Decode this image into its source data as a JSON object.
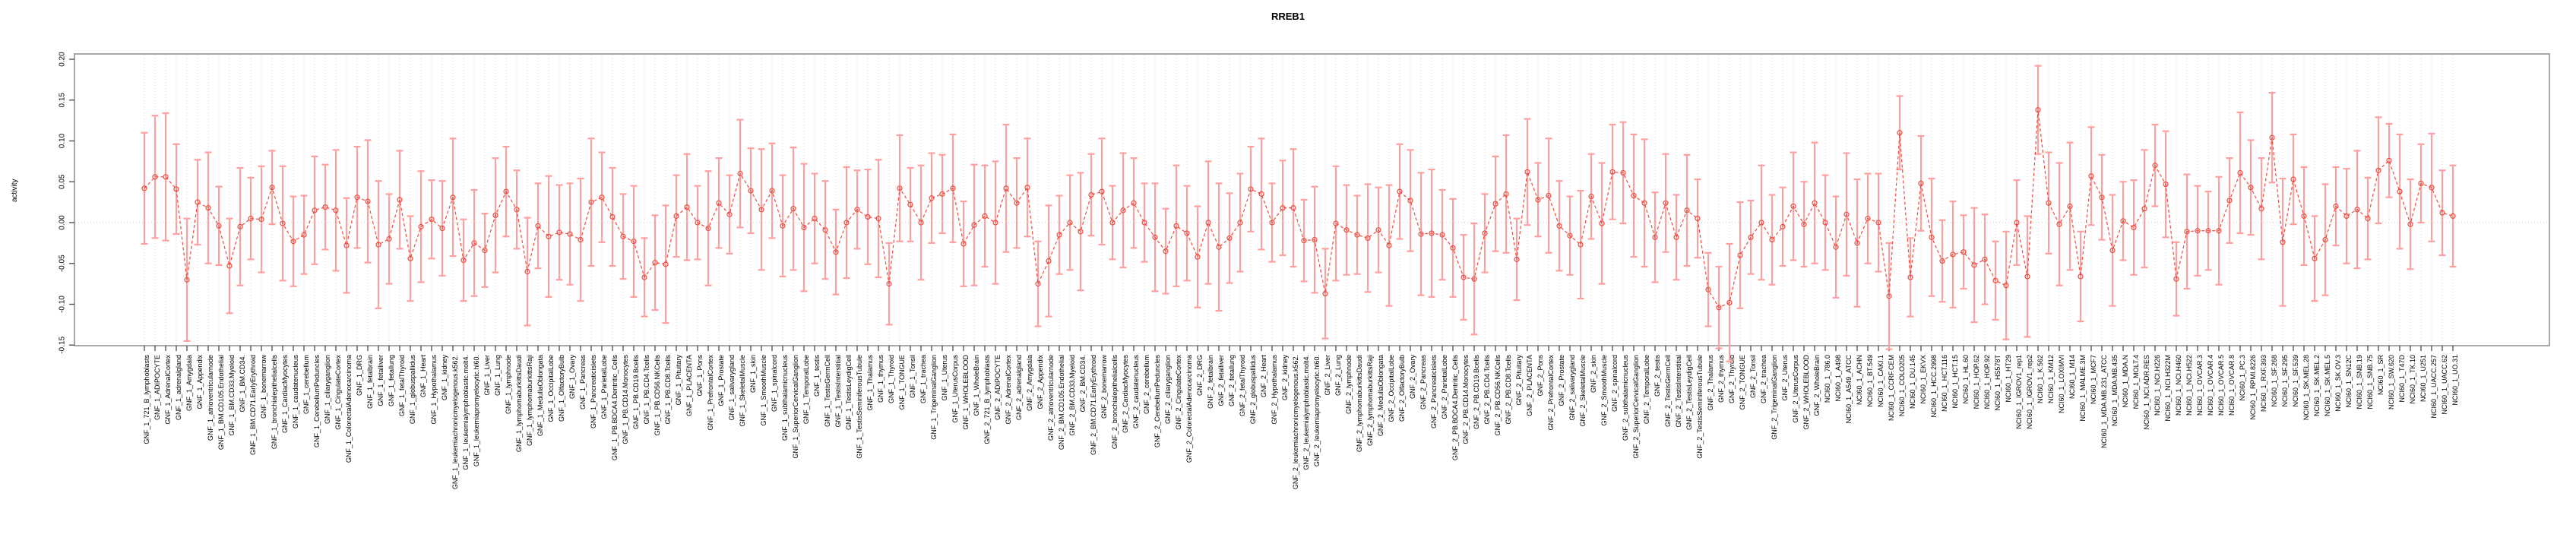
{
  "chart_data": {
    "type": "line",
    "subtype": "points-with-error-bars",
    "title": "RREB1",
    "xlabel": "",
    "ylabel": "activity",
    "ylim": [
      -0.157,
      0.207
    ],
    "yticks": [
      0.2,
      0.15,
      0.1,
      0.05,
      0.0,
      -0.05,
      -0.1,
      -0.15
    ],
    "grid": "vertical dotted line per category, dotted horizontal zero line",
    "legend": "none",
    "colors": {
      "error_bar": "#ffa0a0",
      "series_line": "#ee4b40",
      "point": "#ee4b40",
      "grid": "#d6d6d6",
      "zero_line": "#c8c8c8",
      "box": "#8c8c8c",
      "tick": "#555555",
      "text": "#000000",
      "background": "#ffffff"
    },
    "categories": [
      "GNF_1_721_B_lymphoblasts",
      "GNF_1_ADIPOCYTE",
      "GNF_1_AdrenalCortex",
      "GNF_1_adrenalgland",
      "GNF_1_Amygdala",
      "GNF_1_Appendix",
      "GNF_1_atrioventricularnode",
      "GNF_1_BM.CD105.Endothelial",
      "GNF_1_BM.CD33.Myeloid",
      "GNF_1_BM.CD34.",
      "GNF_1_BM.CD71.EarlyErythroid",
      "GNF_1_bonemarrow",
      "GNF_1_bronchialepithelialcells",
      "GNF_1_CardiacMyocytes",
      "GNF_1_caudatenucleus",
      "GNF_1_cerebellum",
      "GNF_1_CerebellumPeduncles",
      "GNF_1_ciliaryganglion",
      "GNF_1_CingulateCortex",
      "GNF_1_ColorectalAdenocarcinoma",
      "GNF_1_DRG",
      "GNF_1_fetalbrain",
      "GNF_1_fetalliver",
      "GNF_1_fetallung",
      "GNF_1_fetalThyroid",
      "GNF_1_globuspallidus",
      "GNF_1_Heart",
      "GNF_1_Hypothalamus",
      "GNF_1_kidney",
      "GNF_1_leukemiachronicmyelogenous.k562.",
      "GNF_1_leukemialymphoblastic.molt4.",
      "GNF_1_leukemiapromyelocytic.hl60.",
      "GNF_1_Liver",
      "GNF_1_Lung",
      "GNF_1_lymphnode",
      "GNF_1_lymphomaburkittsDaudi",
      "GNF_1_lymphomaburkittsRaji",
      "GNF_1_MedullaOblongata",
      "GNF_1_OccipitalLobe",
      "GNF_1_OlfactoryBulb",
      "GNF_1_Ovary",
      "GNF_1_Pancreas",
      "GNF_1_Pancreaticislets",
      "GNF_1_ParietalLobe",
      "GNF_1_PB.BDCA4.Dentritic_Cells",
      "GNF_1_PB.CD14.Monocytes",
      "GNF_1_PB.CD19.Bcells",
      "GNF_1_PB.CD4.Tcells",
      "GNF_1_PB.CD56.NKCells",
      "GNF_1_PB.CD8.Tcells",
      "GNF_1_Pituitary",
      "GNF_1_PLACENTA",
      "GNF_1_Pons",
      "GNF_1_PrefrontalCortex",
      "GNF_1_Prostate",
      "GNF_1_salivarygland",
      "GNF_1_SkeletalMuscle",
      "GNF_1_skin",
      "GNF_1_SmoothMuscle",
      "GNF_1_spinalcord",
      "GNF_1_subthalamicnucleus",
      "GNF_1_SuperiorCervicalGanglion",
      "GNF_1_TemporalLobe",
      "GNF_1_testis",
      "GNF_1_TestisGermCell",
      "GNF_1_TestisInterstitial",
      "GNF_1_TestisLeydigCell",
      "GNF_1_TestisSeminiferousTubule",
      "GNF_1_Thalamus",
      "GNF_1_thymus",
      "GNF_1_Thyroid",
      "GNF_1_TONGUE",
      "GNF_1_Tonsil",
      "GNF_1_trachea",
      "GNF_1_TrigeminalGanglion",
      "GNF_1_Uterus",
      "GNF_1_UterusCorpus",
      "GNF_1_WHOLEBLOOD",
      "GNF_1_WholeBrain",
      "GNF_2_721_B_lymphoblasts",
      "GNF_2_ADIPOCYTE",
      "GNF_2_AdrenalCortex",
      "GNF_2_adrenalgland",
      "GNF_2_Amygdala",
      "GNF_2_Appendix",
      "GNF_2_atrioventricularnode",
      "GNF_2_BM.CD105.Endothelial",
      "GNF_2_BM.CD33.Myeloid",
      "GNF_2_BM.CD34.",
      "GNF_2_BM.CD71.EarlyErythroid",
      "GNF_2_bonemarrow",
      "GNF_2_bronchialepithelialcells",
      "GNF_2_CardiacMyocytes",
      "GNF_2_caudatenucleus",
      "GNF_2_cerebellum",
      "GNF_2_CerebellumPeduncles",
      "GNF_2_ciliaryganglion",
      "GNF_2_CingulateCortex",
      "GNF_2_ColorectalAdenocarcinoma",
      "GNF_2_DRG",
      "GNF_2_fetalbrain",
      "GNF_2_fetalliver",
      "GNF_2_fetallung",
      "GNF_2_fetalThyroid",
      "GNF_2_globuspallidus",
      "GNF_2_Heart",
      "GNF_2_Hypothalamus",
      "GNF_2_kidney",
      "GNF_2_leukemiachronicmyelogenous.k562.",
      "GNF_2_leukemialymphoblastic.molt4.",
      "GNF_2_leukemiapromyelocytic.hl60.",
      "GNF_2_Liver",
      "GNF_2_Lung",
      "GNF_2_lymphnode",
      "GNF_2_lymphomaburkittsDaudi",
      "GNF_2_lymphomaburkittsRaji",
      "GNF_2_MedullaOblongata",
      "GNF_2_OccipitalLobe",
      "GNF_2_OlfactoryBulb",
      "GNF_2_Ovary",
      "GNF_2_Pancreas",
      "GNF_2_Pancreaticislets",
      "GNF_2_ParietalLobe",
      "GNF_2_PB.BDCA4.Dentritic_Cells",
      "GNF_2_PB.CD14.Monocytes",
      "GNF_2_PB.CD19.Bcells",
      "GNF_2_PB.CD4.Tcells",
      "GNF_2_PB.CD56.NKCells",
      "GNF_2_PB.CD8.Tcells",
      "GNF_2_Pituitary",
      "GNF_2_PLACENTA",
      "GNF_2_Pons",
      "GNF_2_PrefrontalCortex",
      "GNF_2_Prostate",
      "GNF_2_salivarygland",
      "GNF_2_SkeletalMuscle",
      "GNF_2_skin",
      "GNF_2_SmoothMuscle",
      "GNF_2_spinalcord",
      "GNF_2_subthalamicnucleus",
      "GNF_2_SuperiorCervicalGanglion",
      "GNF_2_TemporalLobe",
      "GNF_2_testis",
      "GNF_2_TestisGermCell",
      "GNF_2_TestisInterstitial",
      "GNF_2_TestisLeydigCell",
      "GNF_2_TestisSeminiferousTubule",
      "GNF_2_Thalamus",
      "GNF_2_thymus",
      "GNF_2_Thyroid",
      "GNF_2_TONGUE",
      "GNF_2_Tonsil",
      "GNF_2_trachea",
      "GNF_2_TrigeminalGanglion",
      "GNF_2_Uterus",
      "GNF_2_UterusCorpus",
      "GNF_2_WHOLEBLOOD",
      "GNF_2_WholeBrain",
      "NCI60_1_786.0",
      "NCI60_1_A498",
      "NCI60_1_A549_ATCC",
      "NCI60_1_ACHN",
      "NCI60_1_BT.549",
      "NCI60_1_CAKI.1",
      "NCI60_1_CCRF.CEM",
      "NCI60_1_COLO205",
      "NCI60_1_DU.145",
      "NCI60_1_EKVX",
      "NCI60_1_HCC.2998",
      "NCI60_1_HCT.116",
      "NCI60_1_HCT.15",
      "NCI60_1_HL.60",
      "NCI60_1_HOP.62",
      "NCI60_1_HOP.92",
      "NCI60_1_HS578T",
      "NCI60_1_HT29",
      "NCI60_1_IGROV1_rep1",
      "NCI60_1_IGROV1_rep2",
      "NCI60_1_K.562",
      "NCI60_1_KM12",
      "NCI60_1_LOXIMVI",
      "NCI60_1_M14",
      "NCI60_1_MALME.3M",
      "NCI60_1_MCF7",
      "NCI60_1_MDA.MB.231_ATCC",
      "NCI60_1_MDA.MB.435",
      "NCI60_1_MDA.N",
      "NCI60_1_MOLT.4",
      "NCI60_1_NCI.ADR.RES",
      "NCI60_1_NCI.H226",
      "NCI60_1_NCI.H322M",
      "NCI60_1_NCI.H460",
      "NCI60_1_NCI.H522",
      "NCI60_1_OVCAR.3",
      "NCI60_1_OVCAR.4",
      "NCI60_1_OVCAR.5",
      "NCI60_1_OVCAR.8",
      "NCI60_1_PC.3",
      "NCI60_1_RPMI.8226",
      "NCI60_1_RXF.393",
      "NCI60_1_SF.268",
      "NCI60_1_SF.295",
      "NCI60_1_SF.539",
      "NCI60_1_SK.MEL.28",
      "NCI60_1_SK.MEL.2",
      "NCI60_1_SK.MEL.5",
      "NCI60_1_SK.OV.3",
      "NCI60_1_SN12C",
      "NCI60_1_SNB.19",
      "NCI60_1_SNB.75",
      "NCI60_1_SR",
      "NCI60_1_SW.620",
      "NCI60_1_T47D",
      "NCI60_1_TK.10",
      "NCI60_1_U251",
      "NCI60_1_UACC.257",
      "NCI60_1_UACC.62",
      "NCI60_1_UO.31"
    ],
    "values": [
      0.042,
      0.056,
      0.056,
      0.041,
      -0.07,
      0.025,
      0.018,
      -0.004,
      -0.053,
      -0.005,
      0.005,
      0.004,
      0.043,
      -0.001,
      -0.023,
      -0.015,
      0.015,
      0.019,
      0.015,
      -0.028,
      0.031,
      0.026,
      -0.027,
      -0.02,
      0.028,
      -0.044,
      -0.005,
      0.004,
      -0.007,
      0.031,
      -0.046,
      -0.025,
      -0.034,
      0.009,
      0.038,
      0.016,
      -0.06,
      -0.004,
      -0.017,
      -0.012,
      -0.014,
      -0.021,
      0.025,
      0.031,
      0.007,
      -0.017,
      -0.023,
      -0.067,
      -0.049,
      -0.051,
      0.008,
      0.019,
      0.0,
      -0.007,
      0.024,
      0.01,
      0.06,
      0.039,
      0.016,
      0.039,
      -0.004,
      0.017,
      -0.006,
      0.005,
      -0.009,
      -0.036,
      0.0,
      0.016,
      0.007,
      0.005,
      -0.075,
      0.042,
      0.022,
      0.0,
      0.03,
      0.035,
      0.042,
      -0.026,
      -0.003,
      0.008,
      0.0,
      0.042,
      0.024,
      0.043,
      -0.075,
      -0.047,
      -0.015,
      0.0,
      -0.011,
      0.034,
      0.038,
      0.0,
      0.015,
      0.024,
      0.0,
      -0.018,
      -0.035,
      -0.004,
      -0.013,
      -0.042,
      0.0,
      -0.03,
      -0.019,
      0.0,
      0.041,
      0.035,
      0.0,
      0.018,
      0.018,
      -0.022,
      -0.021,
      -0.087,
      -0.001,
      -0.009,
      -0.015,
      -0.019,
      -0.009,
      -0.028,
      0.038,
      0.027,
      -0.014,
      -0.013,
      -0.015,
      -0.031,
      -0.067,
      -0.069,
      -0.013,
      0.023,
      0.035,
      -0.045,
      0.062,
      0.028,
      0.033,
      -0.004,
      -0.016,
      -0.027,
      0.032,
      -0.001,
      0.062,
      0.061,
      0.033,
      0.024,
      -0.018,
      0.024,
      -0.018,
      0.015,
      0.005,
      -0.082,
      -0.104,
      -0.098,
      -0.04,
      -0.018,
      0.0,
      -0.021,
      -0.005,
      0.02,
      -0.002,
      0.024,
      0.0,
      -0.03,
      0.01,
      -0.025,
      0.005,
      0.0,
      -0.09,
      0.11,
      -0.067,
      0.048,
      -0.018,
      -0.047,
      -0.039,
      -0.036,
      -0.052,
      -0.045,
      -0.071,
      -0.077,
      0.0,
      -0.066,
      0.138,
      0.024,
      -0.002,
      0.02,
      -0.066,
      0.057,
      0.031,
      -0.034,
      0.002,
      -0.006,
      0.017,
      0.07,
      0.047,
      -0.069,
      -0.011,
      -0.01,
      -0.01,
      -0.01,
      0.027,
      0.061,
      0.043,
      0.017,
      0.104,
      -0.024,
      0.053,
      0.008,
      -0.044,
      -0.021,
      0.02,
      0.008,
      0.016,
      0.005,
      0.064,
      0.076,
      0.038,
      -0.002,
      0.048,
      0.043,
      0.012,
      0.008
    ],
    "errors": [
      0.068,
      0.075,
      0.078,
      0.055,
      0.075,
      0.052,
      0.068,
      0.048,
      0.058,
      0.072,
      0.05,
      0.065,
      0.045,
      0.07,
      0.055,
      0.048,
      0.066,
      0.052,
      0.074,
      0.058,
      0.062,
      0.075,
      0.078,
      0.055,
      0.06,
      0.052,
      0.068,
      0.048,
      0.058,
      0.072,
      0.05,
      0.065,
      0.045,
      0.07,
      0.055,
      0.048,
      0.066,
      0.052,
      0.074,
      0.058,
      0.062,
      0.075,
      0.078,
      0.055,
      0.06,
      0.052,
      0.068,
      0.048,
      0.058,
      0.072,
      0.05,
      0.065,
      0.045,
      0.07,
      0.055,
      0.048,
      0.066,
      0.052,
      0.074,
      0.058,
      0.062,
      0.075,
      0.078,
      0.055,
      0.06,
      0.052,
      0.068,
      0.048,
      0.058,
      0.072,
      0.05,
      0.065,
      0.045,
      0.07,
      0.055,
      0.048,
      0.066,
      0.052,
      0.074,
      0.062,
      0.075,
      0.078,
      0.055,
      0.06,
      0.052,
      0.068,
      0.048,
      0.058,
      0.072,
      0.05,
      0.065,
      0.045,
      0.07,
      0.055,
      0.048,
      0.066,
      0.052,
      0.074,
      0.058,
      0.062,
      0.075,
      0.078,
      0.055,
      0.06,
      0.052,
      0.068,
      0.048,
      0.058,
      0.072,
      0.05,
      0.065,
      0.055,
      0.07,
      0.055,
      0.048,
      0.066,
      0.052,
      0.074,
      0.058,
      0.062,
      0.075,
      0.078,
      0.055,
      0.06,
      0.052,
      0.068,
      0.048,
      0.058,
      0.072,
      0.05,
      0.065,
      0.045,
      0.07,
      0.055,
      0.048,
      0.066,
      0.052,
      0.074,
      0.058,
      0.062,
      0.075,
      0.078,
      0.055,
      0.06,
      0.052,
      0.068,
      0.048,
      0.045,
      0.05,
      0.072,
      0.065,
      0.045,
      0.07,
      0.055,
      0.048,
      0.066,
      0.052,
      0.074,
      0.058,
      0.062,
      0.075,
      0.078,
      0.055,
      0.06,
      0.065,
      0.045,
      0.048,
      0.058,
      0.072,
      0.05,
      0.065,
      0.045,
      0.07,
      0.055,
      0.048,
      0.066,
      0.052,
      0.074,
      0.054,
      0.062,
      0.075,
      0.078,
      0.055,
      0.06,
      0.052,
      0.068,
      0.048,
      0.058,
      0.072,
      0.05,
      0.065,
      0.045,
      0.07,
      0.055,
      0.048,
      0.066,
      0.052,
      0.074,
      0.058,
      0.062,
      0.055,
      0.078,
      0.055,
      0.06,
      0.052,
      0.068,
      0.048,
      0.058,
      0.072,
      0.05,
      0.065,
      0.045,
      0.07,
      0.055,
      0.048,
      0.066,
      0.052,
      0.062
    ]
  }
}
